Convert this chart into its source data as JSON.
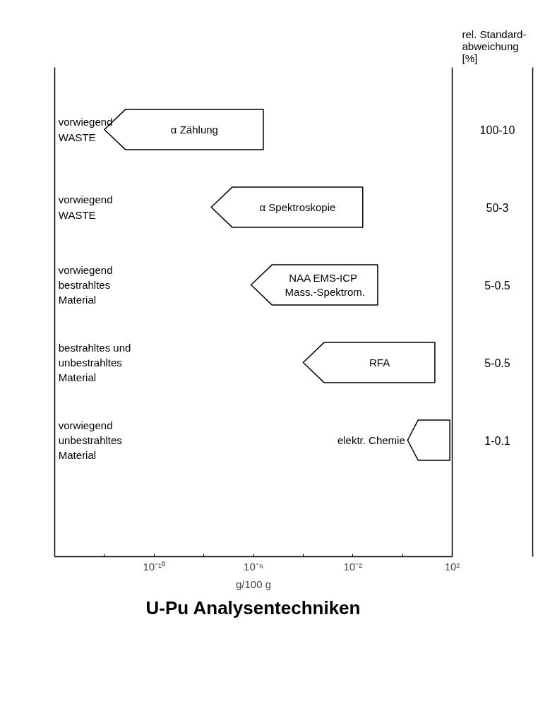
{
  "chart_data": {
    "type": "bar",
    "orientation": "horizontal",
    "title": "U-Pu Analysentechniken",
    "xlabel": "g/100 g",
    "categories": [
      "vorwiegend\nWASTE",
      "vorwiegend\nWASTE",
      "vorwiegend\nbestrahltes\nMaterial",
      "bestrahltes und\nunbestrahltes\nMaterial",
      "vorwiegend\nunbestrahltes\nMaterial"
    ],
    "base": [
      1e-12,
      2e-08,
      8e-07,
      0.0001,
      1.6
    ],
    "values": [
      2.5e-06,
      0.025,
      0.1,
      20,
      78.4
    ],
    "value_labels": [
      "α Zählung",
      "α Spektroskopie",
      "NAA  EMS-ICP\nMass.-Spektrom.",
      "RFA",
      "elektr. Chemie"
    ],
    "color": "#000000",
    "log": "x",
    "grid": false,
    "tick_labels": "x",
    "xlim": [
      1e-14,
      100
    ],
    "xticks": [
      {
        "value": 1e-12,
        "label": null
      },
      {
        "value": 1e-10,
        "label": "10⁻¹⁰"
      },
      {
        "value": 1e-08,
        "label": null
      },
      {
        "value": 1e-06,
        "label": "10⁻⁶"
      },
      {
        "value": 0.0001,
        "label": null
      },
      {
        "value": 0.01,
        "label": "10⁻²"
      },
      {
        "value": 1,
        "label": null
      },
      {
        "value": 100,
        "label": "10²"
      }
    ],
    "annotations": [
      "rel. Standard-\nabweichung\n[%]",
      "100-10",
      "50-3",
      "5-0.5",
      "5-0.5",
      "1-0.1"
    ]
  }
}
